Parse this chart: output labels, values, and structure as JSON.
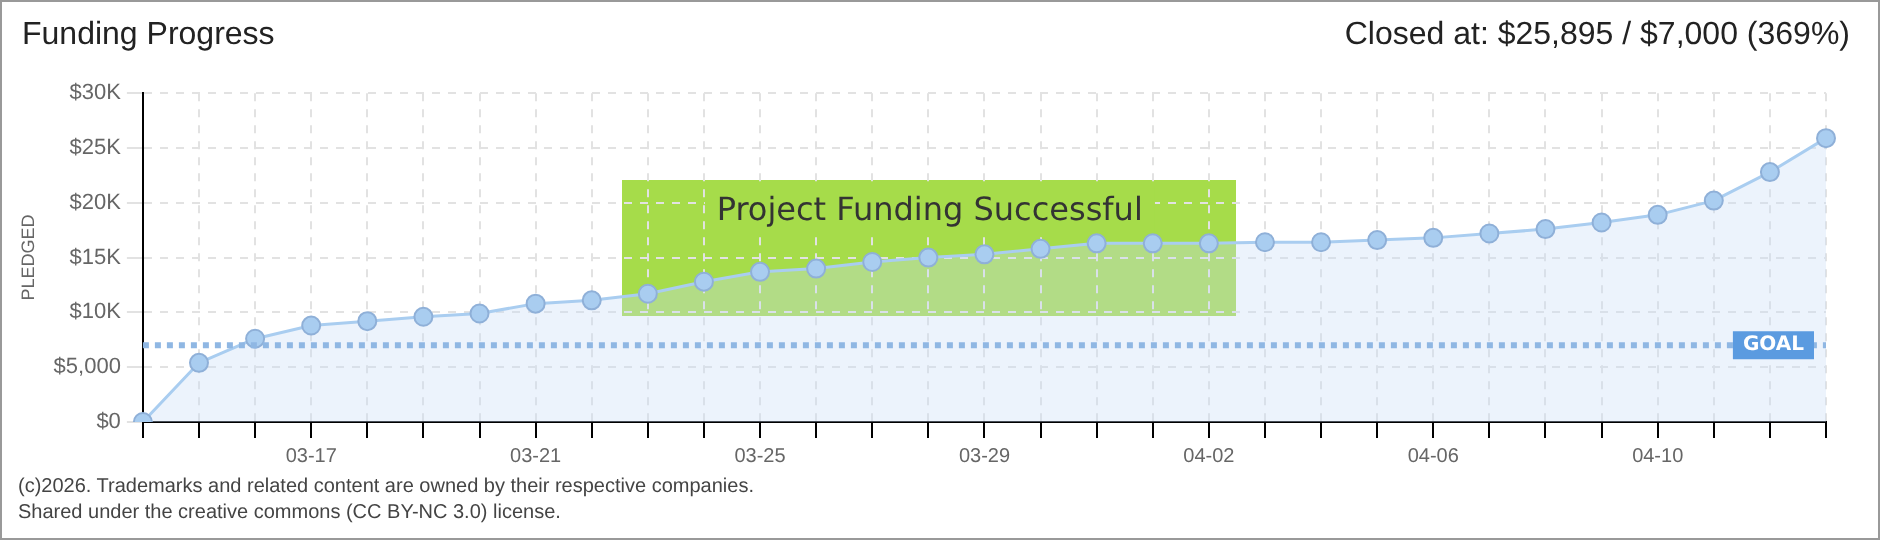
{
  "chart_data": {
    "type": "area",
    "title": "Funding Progress",
    "subtitle": "Closed at: $25,895 / $7,000 (369%)",
    "ylabel": "PLEDGED",
    "categories": [
      null,
      null,
      null,
      "03-17",
      null,
      null,
      null,
      "03-21",
      null,
      null,
      null,
      "03-25",
      null,
      null,
      null,
      "03-29",
      null,
      null,
      null,
      "04-02",
      null,
      null,
      null,
      "04-06",
      null,
      null,
      null,
      "04-10",
      null,
      null,
      null
    ],
    "series": [
      {
        "color": "#a9cdf0",
        "values": [
          0,
          5400,
          7600,
          8800,
          9200,
          9600,
          9900,
          10800,
          11100,
          11700,
          12800,
          13700,
          14000,
          14600,
          15000,
          15300,
          15800,
          16300,
          16300,
          16300,
          16400,
          16400,
          16600,
          16800,
          17200,
          17600,
          18200,
          18900,
          20200,
          22800,
          25900
        ]
      }
    ],
    "ylim": [
      0,
      30000
    ],
    "yticks": [
      {
        "value": 0,
        "label": "$0"
      },
      {
        "value": 5000,
        "label": "$5,000"
      },
      {
        "value": 10000,
        "label": "$10K"
      },
      {
        "value": 15000,
        "label": "$15K"
      },
      {
        "value": 20000,
        "label": "$20K"
      },
      {
        "value": 25000,
        "label": "$25K"
      },
      {
        "value": 30000,
        "label": "$30K"
      }
    ],
    "ref_lines": [
      {
        "axis": "y",
        "value": 7000,
        "label": "GOAL",
        "color": "#8fb7e3",
        "line_style": "dotted"
      }
    ],
    "annotations": [
      "Project Funding Successful",
      "(c)2026. Trademarks and related content are owned by their respective companies.",
      "Shared under the creative commons (CC BY-NC 3.0) license."
    ],
    "grid": true,
    "legend": false,
    "marker": "circle",
    "line_style": "solid"
  }
}
